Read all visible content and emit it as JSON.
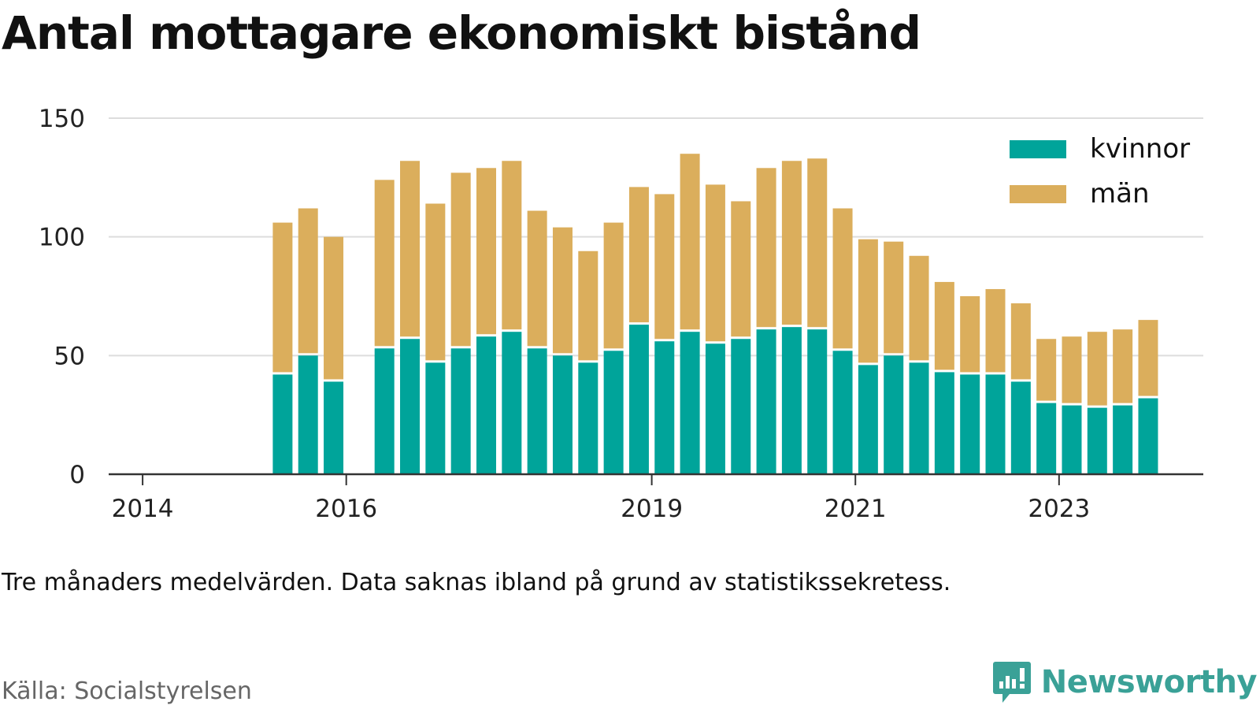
{
  "title": "Antal mottagare ekonomiskt bistånd",
  "note": "Tre månaders medelvärden. Data saknas ibland på grund av statistikssekretess.",
  "source": "Källa: Socialstyrelsen",
  "brand": {
    "name": "Newsworthy",
    "logo_icon": "newsworthy-logo-icon",
    "color": "#3aa197"
  },
  "colors": {
    "kvinnor": "#00a49a",
    "man": "#dbae5c",
    "grid": "#dddddd",
    "axis": "#333333"
  },
  "chart_data": {
    "type": "bar",
    "stacked": true,
    "xlabel": "",
    "ylabel": "",
    "ylim": [
      0,
      150
    ],
    "yticks": [
      0,
      50,
      100,
      150
    ],
    "grid": true,
    "legend_position": "top-right",
    "xlim": [
      "2013-09",
      "2024-06"
    ],
    "xticks": [
      {
        "label": "2014",
        "date": "2014-01"
      },
      {
        "label": "2016",
        "date": "2016-01"
      },
      {
        "label": "2019",
        "date": "2019-01"
      },
      {
        "label": "2021",
        "date": "2021-01"
      },
      {
        "label": "2023",
        "date": "2023-01"
      }
    ],
    "categories": [
      "2015-05",
      "2015-08",
      "2015-11",
      "2016-05",
      "2016-08",
      "2016-11",
      "2017-02",
      "2017-05",
      "2017-08",
      "2017-11",
      "2018-02",
      "2018-05",
      "2018-08",
      "2018-11",
      "2019-02",
      "2019-05",
      "2019-08",
      "2019-11",
      "2020-02",
      "2020-05",
      "2020-08",
      "2020-11",
      "2021-02",
      "2021-05",
      "2021-08",
      "2021-11",
      "2022-02",
      "2022-05",
      "2022-08",
      "2022-11",
      "2023-02",
      "2023-05",
      "2023-08",
      "2023-11"
    ],
    "series": [
      {
        "name": "kvinnor",
        "color": "#00a49a",
        "values": [
          42,
          50,
          39,
          53,
          57,
          47,
          53,
          58,
          60,
          53,
          50,
          47,
          52,
          63,
          56,
          60,
          55,
          57,
          61,
          62,
          61,
          52,
          46,
          50,
          47,
          43,
          42,
          42,
          39,
          30,
          29,
          28,
          29,
          32
        ]
      },
      {
        "name": "män",
        "color": "#dbae5c",
        "values": [
          64,
          62,
          61,
          71,
          75,
          67,
          74,
          71,
          72,
          58,
          54,
          47,
          54,
          58,
          62,
          75,
          67,
          58,
          68,
          70,
          72,
          60,
          53,
          48,
          45,
          38,
          33,
          36,
          33,
          27,
          29,
          32,
          32,
          33
        ]
      }
    ]
  }
}
